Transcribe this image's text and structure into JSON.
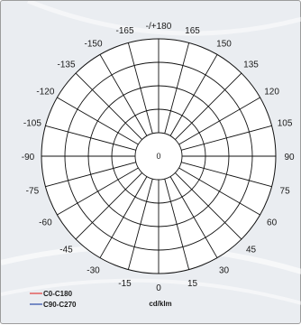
{
  "chart_data": {
    "type": "polar",
    "title": "",
    "angle_labels": [
      "-/+180",
      "165",
      "150",
      "135",
      "120",
      "105",
      "90",
      "75",
      "60",
      "45",
      "30",
      "15",
      "0",
      "-15",
      "-30",
      "-45",
      "-60",
      "-75",
      "-90",
      "-105",
      "-120",
      "-135",
      "-150",
      "-165"
    ],
    "angle_step_deg": 15,
    "rings": 5,
    "center_label": "0",
    "unit_label": "cd/klm",
    "grid": true,
    "legend_position": "bottom-left",
    "series": [
      {
        "name": "C0-C180",
        "color": "#e23b3b",
        "values": []
      },
      {
        "name": "C90-C270",
        "color": "#2b4aa8",
        "values": []
      }
    ]
  }
}
